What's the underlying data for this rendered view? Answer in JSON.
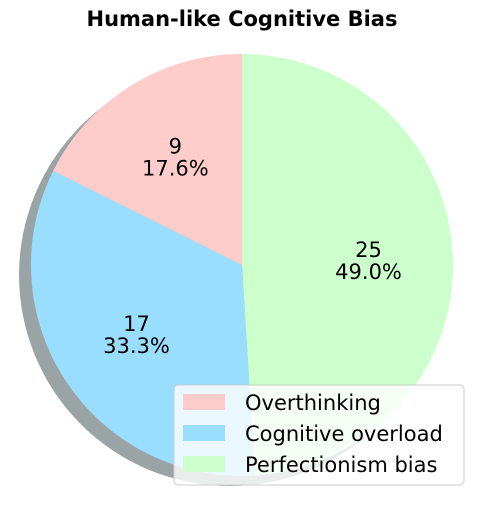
{
  "chart_data": {
    "type": "pie",
    "title": "Human-like Cognitive Bias",
    "slices": [
      {
        "label": "Overthinking",
        "value": 9,
        "percent": "17.6%",
        "color": "#ffcccc"
      },
      {
        "label": "Cognitive overload",
        "value": 17,
        "percent": "33.3%",
        "color": "#99ddff"
      },
      {
        "label": "Perfectionism bias",
        "value": 25,
        "percent": "49.0%",
        "color": "#ccffcc"
      }
    ],
    "start_angle": "top (12 o'clock)",
    "direction": "counterclockwise",
    "shadow": true,
    "legend": "bottom-right"
  }
}
